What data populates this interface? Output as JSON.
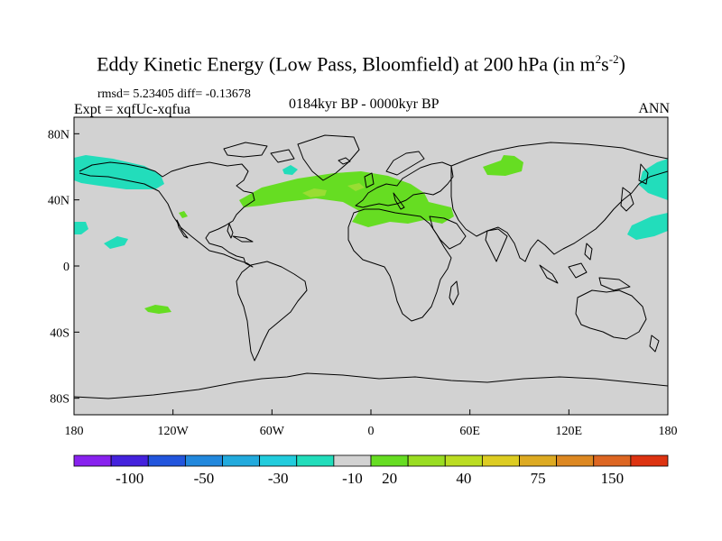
{
  "title": {
    "text": "Eddy Kinetic Energy (Low Pass, Bloomfield) at 200 hPa (in m",
    "sup1": "2",
    "mid": "s",
    "sup2": "-2",
    "end": ")"
  },
  "stats": "rmsd= 5.23405 diff= -0.13678",
  "experiment": "Expt = xqfUc-xqfua",
  "period": "0184kyr BP - 0000kyr BP",
  "season": "ANN",
  "colors": {
    "land_background": "#d2d2d2",
    "green": "#66dd22",
    "light_green": "#99dd33",
    "cyan": "#22ddbb",
    "coast": "#000000"
  },
  "map": {
    "lon_ticks": [
      "180",
      "120W",
      "60W",
      "0",
      "60E",
      "120E",
      "180"
    ],
    "lat_ticks": [
      "80N",
      "40N",
      "0",
      "40S",
      "80S"
    ]
  },
  "colorbar": {
    "colors": [
      "#8822ee",
      "#4422dd",
      "#2255dd",
      "#2288dd",
      "#22aadd",
      "#22ccdd",
      "#22ddbb",
      "#d2d2d2",
      "#66dd22",
      "#99dd22",
      "#bbdd22",
      "#ddcc22",
      "#ddaa22",
      "#dd8822",
      "#dd6622",
      "#dd3311"
    ],
    "labels": [
      "-100",
      "-50",
      "-30",
      "-10",
      "20",
      "40",
      "75",
      "150"
    ]
  }
}
